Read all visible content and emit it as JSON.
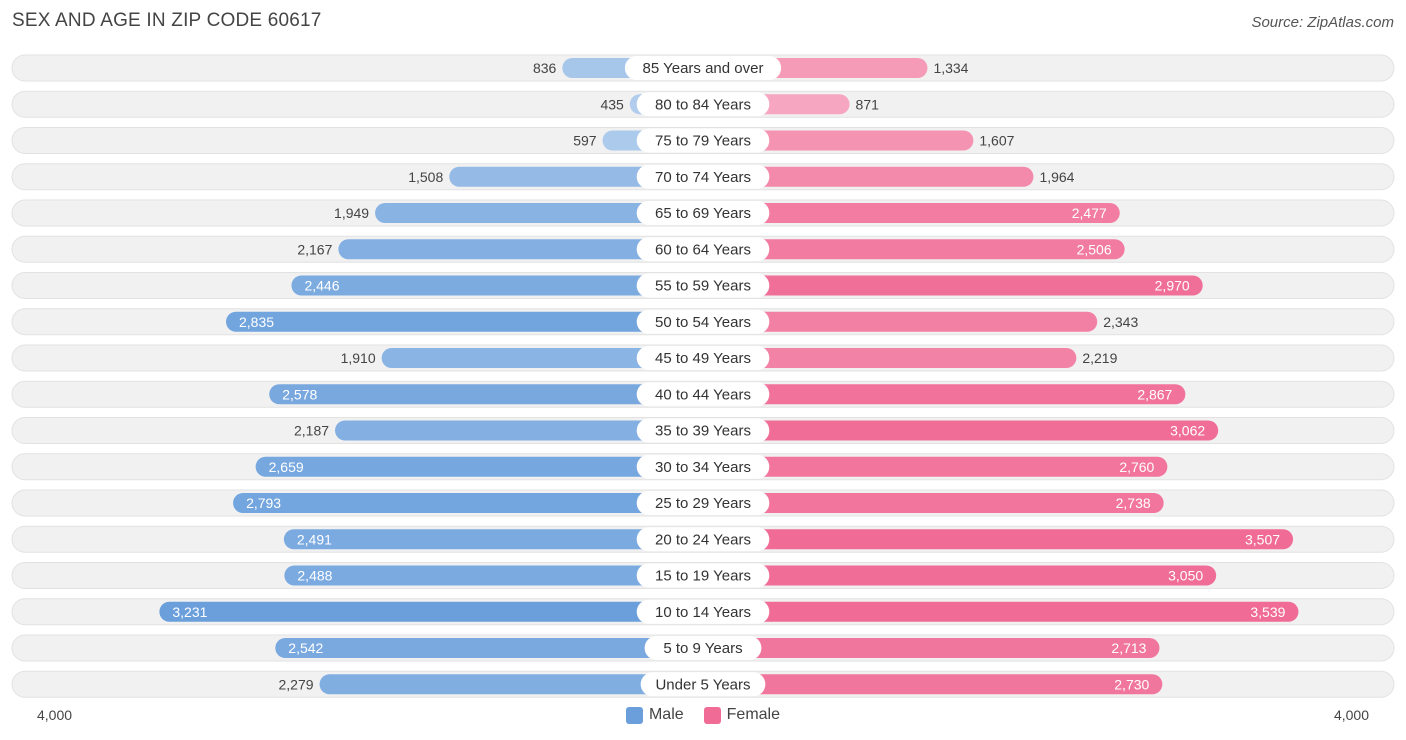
{
  "title": "SEX AND AGE IN ZIP CODE 60617",
  "source": "Source: ZipAtlas.com",
  "colors": {
    "male": "#6a9fdc",
    "female": "#f06b96",
    "row_bg": "#f1f1f1"
  },
  "chart_data": {
    "type": "bar",
    "orientation": "horizontal-diverging",
    "categories": [
      "85 Years and over",
      "80 to 84 Years",
      "75 to 79 Years",
      "70 to 74 Years",
      "65 to 69 Years",
      "60 to 64 Years",
      "55 to 59 Years",
      "50 to 54 Years",
      "45 to 49 Years",
      "40 to 44 Years",
      "35 to 39 Years",
      "30 to 34 Years",
      "25 to 29 Years",
      "20 to 24 Years",
      "15 to 19 Years",
      "10 to 14 Years",
      "5 to 9 Years",
      "Under 5 Years"
    ],
    "series": [
      {
        "name": "Male",
        "values": [
          836,
          435,
          597,
          1508,
          1949,
          2167,
          2446,
          2835,
          1910,
          2578,
          2187,
          2659,
          2793,
          2491,
          2488,
          3231,
          2542,
          2279
        ],
        "labels": [
          "836",
          "435",
          "597",
          "1,508",
          "1,949",
          "2,167",
          "2,446",
          "2,835",
          "1,910",
          "2,578",
          "2,187",
          "2,659",
          "2,793",
          "2,491",
          "2,488",
          "3,231",
          "2,542",
          "2,279"
        ]
      },
      {
        "name": "Female",
        "values": [
          1334,
          871,
          1607,
          1964,
          2477,
          2506,
          2970,
          2343,
          2219,
          2867,
          3062,
          2760,
          2738,
          3507,
          3050,
          3539,
          2713,
          2730
        ],
        "labels": [
          "1,334",
          "871",
          "1,607",
          "1,964",
          "2,477",
          "2,506",
          "2,970",
          "2,343",
          "2,219",
          "2,867",
          "3,062",
          "2,760",
          "2,738",
          "3,507",
          "3,050",
          "3,539",
          "2,713",
          "2,730"
        ]
      }
    ],
    "xlim": [
      0,
      4000
    ],
    "axis_labels": {
      "left": "4,000",
      "right": "4,000"
    },
    "legend": [
      "Male",
      "Female"
    ]
  }
}
